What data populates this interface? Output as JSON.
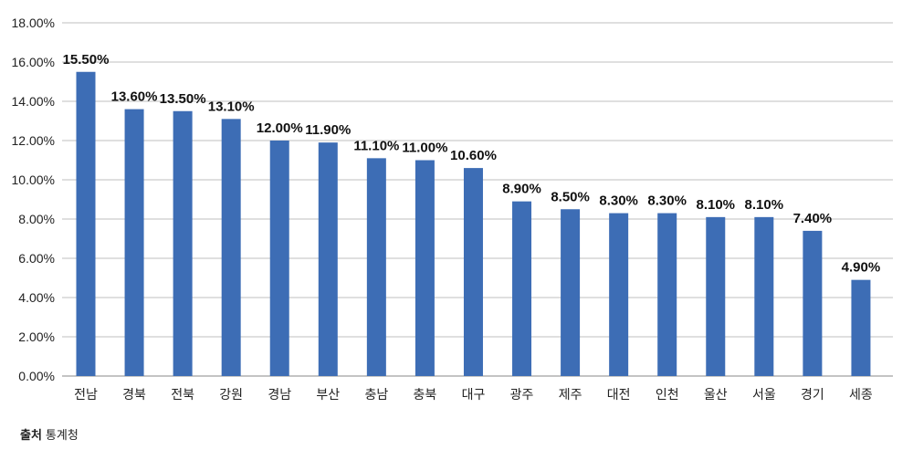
{
  "chart_data": {
    "type": "bar",
    "categories": [
      "전남",
      "경북",
      "전북",
      "강원",
      "경남",
      "부산",
      "충남",
      "충북",
      "대구",
      "광주",
      "제주",
      "대전",
      "인천",
      "울산",
      "서울",
      "경기",
      "세종"
    ],
    "values": [
      15.5,
      13.6,
      13.5,
      13.1,
      12.0,
      11.9,
      11.1,
      11.0,
      10.6,
      8.9,
      8.5,
      8.3,
      8.3,
      8.1,
      8.1,
      7.4,
      4.9
    ],
    "data_labels": [
      "15.50%",
      "13.60%",
      "13.50%",
      "13.10%",
      "12.00%",
      "11.90%",
      "11.10%",
      "11.00%",
      "10.60%",
      "8.90%",
      "8.50%",
      "8.30%",
      "8.30%",
      "8.10%",
      "8.10%",
      "7.40%",
      "4.90%"
    ],
    "y_ticks": [
      0,
      2,
      4,
      6,
      8,
      10,
      12,
      14,
      16,
      18
    ],
    "y_tick_labels": [
      "0.00%",
      "2.00%",
      "4.00%",
      "6.00%",
      "8.00%",
      "10.00%",
      "12.00%",
      "14.00%",
      "16.00%",
      "18.00%"
    ],
    "ylim": [
      0,
      18
    ],
    "grid": true,
    "bar_color": "#3d6db5",
    "grid_color": "#bfbfbf"
  },
  "source": {
    "label": "출처",
    "text": "통계청"
  }
}
